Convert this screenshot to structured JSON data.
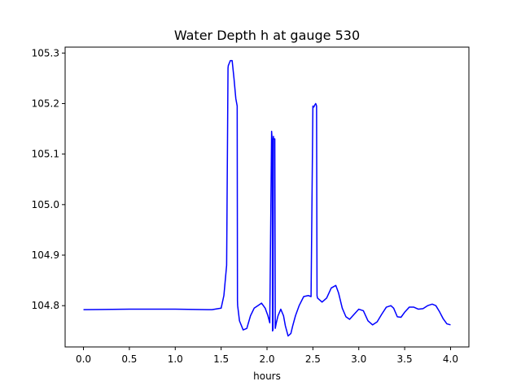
{
  "chart_data": {
    "type": "line",
    "title": "Water Depth h at gauge 530",
    "xlabel": "hours",
    "ylabel": "",
    "xlim": [
      -0.2,
      4.2
    ],
    "ylim": [
      104.7183,
      105.3117
    ],
    "x_ticks": [
      0.0,
      0.5,
      1.0,
      1.5,
      2.0,
      2.5,
      3.0,
      3.5,
      4.0
    ],
    "x_tick_labels": [
      "0.0",
      "0.5",
      "1.0",
      "1.5",
      "2.0",
      "2.5",
      "3.0",
      "3.5",
      "4.0"
    ],
    "y_ticks": [
      104.8,
      104.9,
      105.0,
      105.1,
      105.2,
      105.3
    ],
    "y_tick_labels": [
      "104.8",
      "104.9",
      "105.0",
      "105.1",
      "105.2",
      "105.3"
    ],
    "grid": false,
    "colors": {
      "series": "#0000ff",
      "axes": "#000000"
    },
    "series": [
      {
        "x": [
          0.0,
          0.5,
          1.0,
          1.4,
          1.5,
          1.53,
          1.56,
          1.575,
          1.578,
          1.6,
          1.62,
          1.64,
          1.66,
          1.675,
          1.678,
          1.68,
          1.7,
          1.74,
          1.78,
          1.82,
          1.86,
          1.9,
          1.94,
          1.98,
          2.01,
          2.03,
          2.05,
          2.052,
          2.055,
          2.058,
          2.06,
          2.065,
          2.07,
          2.072,
          2.08,
          2.085,
          2.09,
          2.092,
          2.1,
          2.12,
          2.15,
          2.18,
          2.2,
          2.23,
          2.26,
          2.28,
          2.31,
          2.35,
          2.4,
          2.45,
          2.48,
          2.5,
          2.502,
          2.51,
          2.52,
          2.53,
          2.535,
          2.54,
          2.545,
          2.55,
          2.6,
          2.65,
          2.7,
          2.75,
          2.78,
          2.82,
          2.86,
          2.9,
          2.95,
          3.0,
          3.05,
          3.1,
          3.15,
          3.2,
          3.25,
          3.3,
          3.35,
          3.38,
          3.42,
          3.46,
          3.5,
          3.55,
          3.6,
          3.65,
          3.7,
          3.75,
          3.8,
          3.84,
          3.88,
          3.92,
          3.96,
          4.0
        ],
        "y": [
          104.792,
          104.793,
          104.793,
          104.792,
          104.795,
          104.82,
          104.88,
          105.27,
          105.275,
          105.285,
          105.285,
          105.25,
          105.21,
          105.195,
          104.81,
          104.8,
          104.77,
          104.752,
          104.755,
          104.78,
          104.795,
          104.8,
          104.805,
          104.795,
          104.78,
          104.766,
          105.145,
          105.14,
          105.13,
          105.13,
          104.75,
          104.752,
          105.135,
          105.13,
          105.13,
          105.13,
          104.755,
          104.757,
          104.765,
          104.78,
          104.793,
          104.78,
          104.76,
          104.74,
          104.745,
          104.76,
          104.78,
          104.8,
          104.818,
          104.82,
          104.818,
          105.195,
          105.195,
          105.193,
          105.197,
          105.2,
          105.198,
          105.195,
          104.82,
          104.815,
          104.807,
          104.815,
          104.835,
          104.84,
          104.825,
          104.795,
          104.778,
          104.773,
          104.783,
          104.793,
          104.79,
          104.77,
          104.762,
          104.768,
          104.783,
          104.797,
          104.8,
          104.795,
          104.778,
          104.777,
          104.787,
          104.797,
          104.797,
          104.793,
          104.794,
          104.8,
          104.803,
          104.8,
          104.788,
          104.774,
          104.764,
          104.762
        ]
      }
    ]
  }
}
